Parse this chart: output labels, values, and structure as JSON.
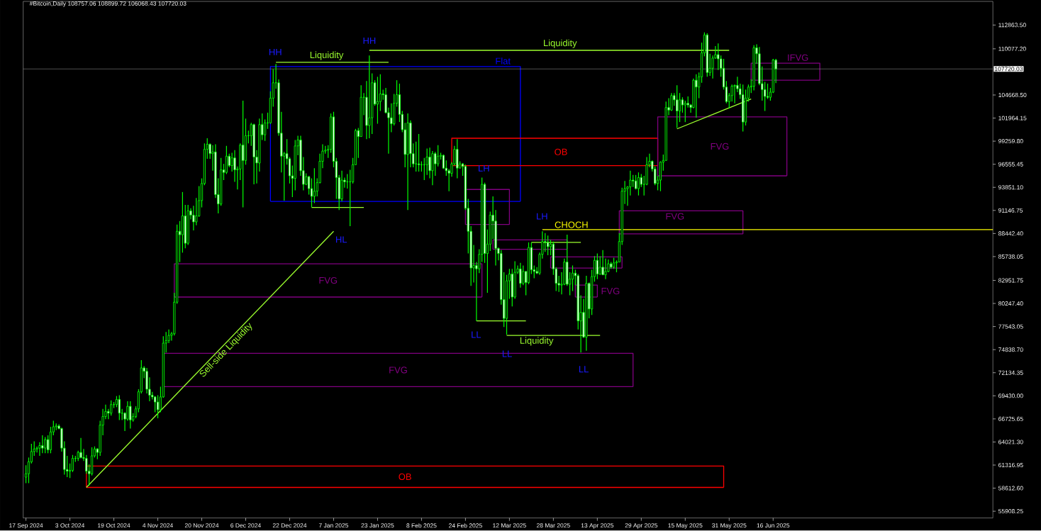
{
  "chart_data": {
    "type": "candlestick",
    "title": "#Bitcoin,Daily 108757.06 108899.72 106068.43 107720.03",
    "color": "#00ff00",
    "x": [
      "2024-09-17",
      "2024-09-18",
      "2024-09-19",
      "2024-09-20",
      "2024-09-21",
      "2024-09-22",
      "2024-09-23",
      "2024-09-24",
      "2024-09-25",
      "2024-09-26",
      "2024-09-27",
      "2024-09-28",
      "2024-09-29",
      "2024-09-30",
      "2024-10-01",
      "2024-10-02",
      "2024-10-03",
      "2024-10-04",
      "2024-10-05",
      "2024-10-06",
      "2024-10-07",
      "2024-10-08",
      "2024-10-09",
      "2024-10-10",
      "2024-10-11",
      "2024-10-12",
      "2024-10-13",
      "2024-10-14",
      "2024-10-15",
      "2024-10-16",
      "2024-10-17",
      "2024-10-18",
      "2024-10-19",
      "2024-10-20",
      "2024-10-21",
      "2024-10-22",
      "2024-10-23",
      "2024-10-24",
      "2024-10-25",
      "2024-10-26",
      "2024-10-27",
      "2024-10-28",
      "2024-10-29",
      "2024-10-30",
      "2024-10-31",
      "2024-11-01",
      "2024-11-02",
      "2024-11-03",
      "2024-11-04",
      "2024-11-05",
      "2024-11-06",
      "2024-11-07",
      "2024-11-08",
      "2024-11-09",
      "2024-11-10",
      "2024-11-11",
      "2024-11-12",
      "2024-11-13",
      "2024-11-14",
      "2024-11-15",
      "2024-11-16",
      "2024-11-17",
      "2024-11-18",
      "2024-11-19",
      "2024-11-20",
      "2024-11-21",
      "2024-11-22",
      "2024-11-23",
      "2024-11-24",
      "2024-11-25",
      "2024-11-26",
      "2024-11-27",
      "2024-11-28",
      "2024-11-29",
      "2024-11-30",
      "2024-12-01",
      "2024-12-02",
      "2024-12-03",
      "2024-12-04",
      "2024-12-05",
      "2024-12-06",
      "2024-12-07",
      "2024-12-08",
      "2024-12-09",
      "2024-12-10",
      "2024-12-11",
      "2024-12-12",
      "2024-12-13",
      "2024-12-14",
      "2024-12-15",
      "2024-12-16",
      "2024-12-17",
      "2024-12-18",
      "2024-12-19",
      "2024-12-20",
      "2024-12-21",
      "2024-12-22",
      "2024-12-23",
      "2024-12-24",
      "2024-12-25",
      "2024-12-26",
      "2024-12-27",
      "2024-12-28",
      "2024-12-29",
      "2024-12-30",
      "2024-12-31",
      "2025-01-01",
      "2025-01-02",
      "2025-01-03",
      "2025-01-04",
      "2025-01-05",
      "2025-01-06",
      "2025-01-07",
      "2025-01-08",
      "2025-01-09",
      "2025-01-10",
      "2025-01-11",
      "2025-01-12",
      "2025-01-13",
      "2025-01-14",
      "2025-01-15",
      "2025-01-16",
      "2025-01-17",
      "2025-01-18",
      "2025-01-19",
      "2025-01-20",
      "2025-01-21",
      "2025-01-22",
      "2025-01-23",
      "2025-01-24",
      "2025-01-25",
      "2025-01-26",
      "2025-01-27",
      "2025-01-28",
      "2025-01-29",
      "2025-01-30",
      "2025-01-31",
      "2025-02-01",
      "2025-02-02",
      "2025-02-03",
      "2025-02-04",
      "2025-02-05",
      "2025-02-06",
      "2025-02-07",
      "2025-02-08",
      "2025-02-09",
      "2025-02-10",
      "2025-02-11",
      "2025-02-12",
      "2025-02-13",
      "2025-02-14",
      "2025-02-15",
      "2025-02-16",
      "2025-02-17",
      "2025-02-18",
      "2025-02-19",
      "2025-02-20",
      "2025-02-21",
      "2025-02-22",
      "2025-02-23",
      "2025-02-24",
      "2025-02-25",
      "2025-02-26",
      "2025-02-27",
      "2025-02-28",
      "2025-03-01",
      "2025-03-02",
      "2025-03-03",
      "2025-03-04",
      "2025-03-05",
      "2025-03-06",
      "2025-03-07",
      "2025-03-08",
      "2025-03-09",
      "2025-03-10",
      "2025-03-11",
      "2025-03-12",
      "2025-03-13",
      "2025-03-14",
      "2025-03-15",
      "2025-03-16",
      "2025-03-17",
      "2025-03-18",
      "2025-03-19",
      "2025-03-20",
      "2025-03-21",
      "2025-03-22",
      "2025-03-23",
      "2025-03-24",
      "2025-03-25",
      "2025-03-26",
      "2025-03-27",
      "2025-03-28",
      "2025-03-29",
      "2025-03-30",
      "2025-03-31",
      "2025-04-01",
      "2025-04-02",
      "2025-04-03",
      "2025-04-04",
      "2025-04-05",
      "2025-04-06",
      "2025-04-07",
      "2025-04-08",
      "2025-04-09",
      "2025-04-10",
      "2025-04-11",
      "2025-04-12",
      "2025-04-13",
      "2025-04-14",
      "2025-04-15",
      "2025-04-16",
      "2025-04-17",
      "2025-04-18",
      "2025-04-19",
      "2025-04-20",
      "2025-04-21",
      "2025-04-22",
      "2025-04-23",
      "2025-04-24",
      "2025-04-25",
      "2025-04-26",
      "2025-04-27",
      "2025-04-28",
      "2025-04-29",
      "2025-04-30",
      "2025-05-01",
      "2025-05-02",
      "2025-05-03",
      "2025-05-04",
      "2025-05-05",
      "2025-05-06",
      "2025-05-07",
      "2025-05-08",
      "2025-05-09",
      "2025-05-10",
      "2025-05-11",
      "2025-05-12",
      "2025-05-13",
      "2025-05-14",
      "2025-05-15",
      "2025-05-16",
      "2025-05-17",
      "2025-05-18",
      "2025-05-19",
      "2025-05-20",
      "2025-05-21",
      "2025-05-22",
      "2025-05-23",
      "2025-05-24",
      "2025-05-25",
      "2025-05-26",
      "2025-05-27",
      "2025-05-28",
      "2025-05-29",
      "2025-05-30",
      "2025-05-31",
      "2025-06-01",
      "2025-06-02",
      "2025-06-03",
      "2025-06-04",
      "2025-06-05",
      "2025-06-06",
      "2025-06-07",
      "2025-06-08",
      "2025-06-09",
      "2025-06-10",
      "2025-06-11",
      "2025-06-12",
      "2025-06-13",
      "2025-06-14",
      "2025-06-15",
      "2025-06-16",
      "2025-06-17"
    ],
    "ohlc": [
      [
        59900,
        61300,
        59200,
        60300
      ],
      [
        60300,
        62200,
        59200,
        61700
      ],
      [
        61700,
        63800,
        61500,
        62900
      ],
      [
        62900,
        64100,
        62400,
        63200
      ],
      [
        63200,
        63500,
        62800,
        63300
      ],
      [
        63300,
        64000,
        62400,
        63600
      ],
      [
        63600,
        64800,
        62700,
        63300
      ],
      [
        63300,
        64600,
        62700,
        64300
      ],
      [
        64300,
        64800,
        62700,
        63100
      ],
      [
        63100,
        65800,
        62700,
        65200
      ],
      [
        65200,
        66500,
        64800,
        65800
      ],
      [
        65800,
        66200,
        65400,
        65900
      ],
      [
        65900,
        66100,
        65500,
        65600
      ],
      [
        65600,
        65700,
        62900,
        63300
      ],
      [
        63300,
        64100,
        60200,
        60800
      ],
      [
        60800,
        62400,
        59900,
        60600
      ],
      [
        60600,
        61500,
        59800,
        60700
      ],
      [
        60700,
        62500,
        60500,
        62100
      ],
      [
        62100,
        62400,
        61700,
        62100
      ],
      [
        62100,
        63000,
        61800,
        62800
      ],
      [
        62800,
        64500,
        62100,
        62200
      ],
      [
        62200,
        63200,
        61800,
        62100
      ],
      [
        62100,
        62500,
        60300,
        60600
      ],
      [
        60600,
        61400,
        58900,
        60300
      ],
      [
        60300,
        63400,
        60100,
        62400
      ],
      [
        62400,
        63500,
        62200,
        63200
      ],
      [
        63200,
        63300,
        62000,
        62800
      ],
      [
        62800,
        66500,
        62400,
        66000
      ],
      [
        66000,
        67900,
        64800,
        67000
      ],
      [
        67000,
        68400,
        66700,
        67600
      ],
      [
        67600,
        67900,
        66700,
        67400
      ],
      [
        67400,
        68900,
        67100,
        68400
      ],
      [
        68400,
        68700,
        68000,
        68400
      ],
      [
        68400,
        69400,
        68100,
        69000
      ],
      [
        69000,
        69500,
        66600,
        67400
      ],
      [
        67400,
        67900,
        66600,
        67400
      ],
      [
        67400,
        67500,
        65300,
        66700
      ],
      [
        66700,
        68800,
        66500,
        68200
      ],
      [
        68200,
        68800,
        65600,
        66600
      ],
      [
        66600,
        67400,
        66400,
        67000
      ],
      [
        67000,
        68200,
        66800,
        67900
      ],
      [
        67900,
        70200,
        67500,
        69900
      ],
      [
        69900,
        73600,
        69700,
        72700
      ],
      [
        72700,
        72900,
        71500,
        72300
      ],
      [
        72300,
        72700,
        69700,
        70200
      ],
      [
        70200,
        71600,
        68800,
        69500
      ],
      [
        69500,
        69900,
        69000,
        69300
      ],
      [
        69300,
        69400,
        67500,
        68700
      ],
      [
        68700,
        69500,
        66800,
        67800
      ],
      [
        67800,
        70500,
        67500,
        69300
      ],
      [
        69300,
        76400,
        69200,
        75600
      ],
      [
        75600,
        76900,
        74500,
        75900
      ],
      [
        75900,
        77200,
        75600,
        76500
      ],
      [
        76500,
        76900,
        75900,
        76700
      ],
      [
        76700,
        81500,
        76500,
        80400
      ],
      [
        80400,
        89500,
        80200,
        88700
      ],
      [
        88700,
        89900,
        85100,
        88300
      ],
      [
        88300,
        93300,
        86200,
        90500
      ],
      [
        90500,
        91800,
        86700,
        87300
      ],
      [
        87300,
        91800,
        87100,
        91100
      ],
      [
        91100,
        91400,
        90100,
        90600
      ],
      [
        90600,
        91700,
        88800,
        89800
      ],
      [
        89800,
        92600,
        89400,
        90500
      ],
      [
        90500,
        94000,
        90400,
        92300
      ],
      [
        92300,
        94900,
        91500,
        94300
      ],
      [
        94300,
        99000,
        94100,
        98300
      ],
      [
        98300,
        99600,
        97200,
        98900
      ],
      [
        98900,
        99000,
        97200,
        97800
      ],
      [
        97800,
        98800,
        95800,
        98000
      ],
      [
        98000,
        98900,
        92600,
        93000
      ],
      [
        93000,
        94900,
        90800,
        91900
      ],
      [
        91900,
        97300,
        91700,
        95900
      ],
      [
        95900,
        96600,
        94700,
        95600
      ],
      [
        95600,
        98700,
        95400,
        97500
      ],
      [
        97500,
        97800,
        96200,
        96400
      ],
      [
        96400,
        97900,
        95700,
        97300
      ],
      [
        97300,
        98200,
        94500,
        95900
      ],
      [
        95900,
        96300,
        93600,
        96000
      ],
      [
        96000,
        99000,
        94700,
        98800
      ],
      [
        98800,
        104000,
        91500,
        97000
      ],
      [
        97000,
        101900,
        96500,
        99900
      ],
      [
        99900,
        100500,
        99000,
        99900
      ],
      [
        99900,
        101400,
        98700,
        101200
      ],
      [
        101200,
        101300,
        94200,
        97400
      ],
      [
        97400,
        98200,
        94300,
        96700
      ],
      [
        96700,
        101900,
        95700,
        101200
      ],
      [
        101200,
        102500,
        99400,
        100000
      ],
      [
        100000,
        101800,
        99300,
        101400
      ],
      [
        101400,
        102600,
        100700,
        101400
      ],
      [
        101400,
        105100,
        101300,
        104300
      ],
      [
        104300,
        107700,
        103300,
        106100
      ],
      [
        106100,
        108300,
        105400,
        106100
      ],
      [
        106100,
        106500,
        99900,
        100200
      ],
      [
        100200,
        102700,
        95600,
        97500
      ],
      [
        97500,
        98000,
        92300,
        97800
      ],
      [
        97800,
        99500,
        96500,
        97200
      ],
      [
        97200,
        97400,
        94300,
        95200
      ],
      [
        95200,
        96400,
        92700,
        94900
      ],
      [
        94900,
        99400,
        93500,
        98700
      ],
      [
        98700,
        99900,
        97600,
        99400
      ],
      [
        99400,
        99900,
        95200,
        95800
      ],
      [
        95800,
        97400,
        93500,
        94200
      ],
      [
        94200,
        95500,
        94100,
        95100
      ],
      [
        95100,
        95200,
        93000,
        93700
      ],
      [
        93700,
        94900,
        91500,
        92800
      ],
      [
        92800,
        96100,
        92000,
        93400
      ],
      [
        93400,
        94900,
        92800,
        94400
      ],
      [
        94400,
        97800,
        94300,
        96900
      ],
      [
        96900,
        98900,
        96100,
        98100
      ],
      [
        98100,
        98700,
        97800,
        98200
      ],
      [
        98200,
        98800,
        97300,
        98300
      ],
      [
        98300,
        102500,
        97900,
        102100
      ],
      [
        102100,
        102700,
        96200,
        96900
      ],
      [
        96900,
        97300,
        92500,
        95000
      ],
      [
        95000,
        95300,
        91200,
        92500
      ],
      [
        92500,
        95800,
        92200,
        94700
      ],
      [
        94700,
        95000,
        93800,
        94500
      ],
      [
        94500,
        95400,
        93700,
        94500
      ],
      [
        94500,
        95900,
        89300,
        94500
      ],
      [
        94500,
        97300,
        94300,
        96500
      ],
      [
        96500,
        100700,
        96500,
        100500
      ],
      [
        100500,
        100800,
        97300,
        99800
      ],
      [
        99800,
        105800,
        99800,
        104400
      ],
      [
        104400,
        104900,
        102300,
        104400
      ],
      [
        104400,
        106300,
        99500,
        101100
      ],
      [
        101100,
        109300,
        99600,
        102000
      ],
      [
        102000,
        107200,
        100100,
        106100
      ],
      [
        106100,
        106400,
        103400,
        103600
      ],
      [
        103600,
        106800,
        101300,
        103900
      ],
      [
        103900,
        107100,
        102800,
        104800
      ],
      [
        104800,
        105300,
        104100,
        104700
      ],
      [
        104700,
        105500,
        102500,
        102600
      ],
      [
        102600,
        103200,
        97800,
        102000
      ],
      [
        102000,
        103700,
        100300,
        101300
      ],
      [
        101300,
        104800,
        101100,
        103700
      ],
      [
        103700,
        106400,
        103300,
        104700
      ],
      [
        104700,
        106000,
        101500,
        102400
      ],
      [
        102400,
        102800,
        100300,
        100600
      ],
      [
        100600,
        101400,
        96200,
        97700
      ],
      [
        97700,
        102500,
        91200,
        101400
      ],
      [
        101400,
        101700,
        96200,
        97800
      ],
      [
        97800,
        99000,
        96200,
        96600
      ],
      [
        96600,
        99200,
        95700,
        96600
      ],
      [
        96600,
        100100,
        95700,
        96500
      ],
      [
        96500,
        96900,
        95700,
        96500
      ],
      [
        96500,
        97300,
        94700,
        96500
      ],
      [
        96500,
        98400,
        95300,
        97400
      ],
      [
        97400,
        98500,
        94900,
        95800
      ],
      [
        95800,
        98100,
        94100,
        97800
      ],
      [
        97800,
        98000,
        95200,
        96600
      ],
      [
        96600,
        98800,
        96300,
        97500
      ],
      [
        97500,
        97900,
        97100,
        97600
      ],
      [
        97600,
        97700,
        96000,
        96100
      ],
      [
        96100,
        97000,
        95200,
        95800
      ],
      [
        95800,
        96000,
        93400,
        95500
      ],
      [
        95500,
        96800,
        95100,
        96600
      ],
      [
        96600,
        98700,
        96400,
        98300
      ],
      [
        98300,
        99500,
        94900,
        96100
      ],
      [
        96100,
        96900,
        96100,
        96600
      ],
      [
        96600,
        96700,
        95200,
        96300
      ],
      [
        96300,
        96500,
        91200,
        91400
      ],
      [
        91400,
        92500,
        86100,
        88700
      ],
      [
        88700,
        89300,
        82300,
        84400
      ],
      [
        84400,
        87100,
        82700,
        84700
      ],
      [
        84700,
        85100,
        78200,
        84300
      ],
      [
        84300,
        86600,
        83800,
        86000
      ],
      [
        86000,
        95000,
        85100,
        94200
      ],
      [
        94200,
        94400,
        85000,
        86100
      ],
      [
        86100,
        88900,
        81500,
        87200
      ],
      [
        87200,
        91000,
        86400,
        90600
      ],
      [
        90600,
        92800,
        87800,
        89900
      ],
      [
        89900,
        91200,
        84700,
        86700
      ],
      [
        86700,
        86800,
        85300,
        86100
      ],
      [
        86100,
        86500,
        80100,
        80700
      ],
      [
        80700,
        83900,
        77500,
        78500
      ],
      [
        78500,
        83600,
        76600,
        82900
      ],
      [
        82900,
        84300,
        80800,
        83700
      ],
      [
        83700,
        84300,
        79900,
        81000
      ],
      [
        81000,
        85200,
        80800,
        83900
      ],
      [
        83900,
        84700,
        83700,
        84300
      ],
      [
        84300,
        85000,
        82100,
        82600
      ],
      [
        82600,
        84700,
        82400,
        84000
      ],
      [
        84000,
        84000,
        81200,
        82700
      ],
      [
        82700,
        87400,
        82500,
        86800
      ],
      [
        86800,
        87400,
        83700,
        84200
      ],
      [
        84200,
        84700,
        83200,
        84000
      ],
      [
        84000,
        84500,
        83700,
        83800
      ],
      [
        83800,
        86200,
        83600,
        86000
      ],
      [
        86000,
        88700,
        85500,
        87500
      ],
      [
        87500,
        88500,
        86300,
        87400
      ],
      [
        87400,
        88200,
        85900,
        86900
      ],
      [
        86900,
        87700,
        85900,
        87200
      ],
      [
        87200,
        87500,
        83600,
        84300
      ],
      [
        84300,
        84500,
        81700,
        82600
      ],
      [
        82600,
        83500,
        81600,
        82400
      ],
      [
        82400,
        83900,
        81300,
        82500
      ],
      [
        82500,
        85500,
        82400,
        85100
      ],
      [
        85100,
        88300,
        82300,
        82500
      ],
      [
        82500,
        83900,
        81200,
        83100
      ],
      [
        83100,
        84700,
        81700,
        83800
      ],
      [
        83800,
        84200,
        82400,
        83500
      ],
      [
        83500,
        83700,
        77200,
        78200
      ],
      [
        78200,
        81200,
        74500,
        79200
      ],
      [
        79200,
        80800,
        76200,
        76300
      ],
      [
        76300,
        83500,
        74700,
        82600
      ],
      [
        82600,
        82700,
        78500,
        79600
      ],
      [
        79600,
        84200,
        78900,
        83400
      ],
      [
        83400,
        85800,
        82800,
        85300
      ],
      [
        85300,
        86100,
        83100,
        83700
      ],
      [
        83700,
        85800,
        83600,
        84500
      ],
      [
        84500,
        86500,
        83600,
        83600
      ],
      [
        83600,
        85500,
        83100,
        84000
      ],
      [
        84000,
        85400,
        83900,
        84900
      ],
      [
        84900,
        85100,
        84300,
        84500
      ],
      [
        84500,
        85600,
        84300,
        85000
      ],
      [
        85000,
        85300,
        83900,
        85100
      ],
      [
        85100,
        88500,
        85100,
        87500
      ],
      [
        87500,
        93800,
        87100,
        93400
      ],
      [
        93400,
        94600,
        91900,
        93700
      ],
      [
        93700,
        94000,
        91700,
        93900
      ],
      [
        93900,
        95800,
        92900,
        94700
      ],
      [
        94700,
        95300,
        93900,
        94600
      ],
      [
        94600,
        95300,
        93600,
        93700
      ],
      [
        93700,
        95600,
        92900,
        95000
      ],
      [
        95000,
        95400,
        93900,
        94200
      ],
      [
        94200,
        95200,
        92900,
        94200
      ],
      [
        94200,
        97400,
        94100,
        96500
      ],
      [
        96500,
        97800,
        96200,
        96900
      ],
      [
        96900,
        97000,
        95700,
        96000
      ],
      [
        96000,
        96300,
        94100,
        94300
      ],
      [
        94300,
        95200,
        93500,
        94700
      ],
      [
        94700,
        96900,
        93400,
        96800
      ],
      [
        96800,
        97700,
        95800,
        97000
      ],
      [
        97000,
        103900,
        97000,
        103200
      ],
      [
        103200,
        104300,
        102300,
        102900
      ],
      [
        102900,
        104900,
        102800,
        104600
      ],
      [
        104600,
        104900,
        103400,
        104100
      ],
      [
        104100,
        105800,
        100800,
        102800
      ],
      [
        102800,
        104900,
        101500,
        104100
      ],
      [
        104100,
        104400,
        102600,
        103500
      ],
      [
        103500,
        104000,
        101500,
        103700
      ],
      [
        103700,
        104500,
        103200,
        103500
      ],
      [
        103500,
        103600,
        102600,
        103200
      ],
      [
        103200,
        106600,
        103100,
        106400
      ],
      [
        106400,
        107100,
        102000,
        105600
      ],
      [
        105600,
        107300,
        104300,
        106800
      ],
      [
        106800,
        110800,
        106100,
        109600
      ],
      [
        109600,
        112000,
        109200,
        111700
      ],
      [
        111700,
        111900,
        106800,
        107300
      ],
      [
        107300,
        109500,
        106900,
        107800
      ],
      [
        107800,
        109300,
        106600,
        109000
      ],
      [
        109000,
        110400,
        108900,
        109400
      ],
      [
        109400,
        110700,
        107600,
        108900
      ],
      [
        108900,
        109300,
        106800,
        107800
      ],
      [
        107800,
        108900,
        105300,
        105600
      ],
      [
        105600,
        106300,
        103700,
        103900
      ],
      [
        103900,
        104900,
        103100,
        104600
      ],
      [
        104600,
        105900,
        103900,
        105700
      ],
      [
        105700,
        105900,
        103700,
        105800
      ],
      [
        105800,
        106800,
        105000,
        105400
      ],
      [
        105400,
        106000,
        104200,
        104700
      ],
      [
        104700,
        105900,
        100400,
        101500
      ],
      [
        101500,
        105300,
        101100,
        104300
      ],
      [
        104300,
        105900,
        103900,
        105600
      ],
      [
        105600,
        106500,
        104900,
        105700
      ],
      [
        105700,
        110500,
        105200,
        110200
      ],
      [
        110200,
        110600,
        108300,
        109500
      ],
      [
        109500,
        110300,
        105800,
        106000
      ],
      [
        106000,
        108000,
        104000,
        105300
      ],
      [
        105300,
        106200,
        102800,
        104500
      ],
      [
        104500,
        106000,
        104200,
        104400
      ],
      [
        104400,
        105500,
        104000,
        105000
      ],
      [
        105000,
        108900,
        104900,
        108757.06
      ],
      [
        108757.06,
        108899.72,
        106068.43,
        107720.03
      ]
    ],
    "series": [
      {
        "type": "line",
        "name": "Flat",
        "color": "#0000ff",
        "x": [
          "2024-12-15",
          "2024-12-15",
          "2025-03-16",
          "2025-03-16"
        ],
        "values": [
          92200,
          108000,
          108000,
          92200
        ]
      },
      {
        "type": "line",
        "color": "#0000ff",
        "x": [
          "2024-12-15",
          "2025-03-16"
        ],
        "values": [
          92200,
          92200
        ]
      },
      {
        "type": "line",
        "name": "OB",
        "color": "#ff0000",
        "x": [
          "2025-02-19",
          "2025-02-19",
          "2025-05-05",
          "2025-05-05"
        ],
        "values": [
          96400,
          99600,
          99600,
          96400
        ]
      },
      {
        "type": "line",
        "color": "#ff0000",
        "x": [
          "2025-02-19",
          "2025-05-05"
        ],
        "values": [
          96400,
          96400
        ]
      },
      {
        "type": "line",
        "color": "#800080",
        "x": [
          "2025-02-24",
          "2025-02-24",
          "2025-03-12",
          "2025-03-12"
        ],
        "values": [
          89500,
          93600,
          93600,
          89500
        ]
      },
      {
        "type": "line",
        "color": "#800080",
        "x": [
          "2025-02-24",
          "2025-03-12"
        ],
        "values": [
          89500,
          89500
        ]
      },
      {
        "type": "line",
        "name": "FVG",
        "color": "#800080",
        "x": [
          "2024-11-10",
          "2024-11-10",
          "2025-03-02",
          "2025-03-02"
        ],
        "values": [
          81000,
          84900,
          84900,
          81000
        ]
      },
      {
        "type": "line",
        "color": "#800080",
        "x": [
          "2024-11-10",
          "2025-03-02"
        ],
        "values": [
          81000,
          81000
        ]
      },
      {
        "type": "line",
        "name": "FVG",
        "color": "#800080",
        "x": [
          "2024-11-06",
          "2024-11-06",
          "2025-04-26",
          "2025-04-26"
        ],
        "values": [
          70500,
          74400,
          74400,
          70500
        ]
      },
      {
        "type": "line",
        "color": "#800080",
        "x": [
          "2024-11-06",
          "2025-04-26"
        ],
        "values": [
          70500,
          70500
        ]
      },
      {
        "type": "line",
        "name": "OB",
        "color": "#ff0000",
        "x": [
          "2024-10-09",
          "2024-10-09",
          "2025-05-29",
          "2025-05-29"
        ],
        "values": [
          58700,
          61200,
          61200,
          58700
        ]
      },
      {
        "type": "line",
        "color": "#ff0000",
        "x": [
          "2024-10-09",
          "2025-05-29"
        ],
        "values": [
          58700,
          58700
        ]
      },
      {
        "type": "line",
        "name": "FVG",
        "color": "#800080",
        "x": [
          "2025-04-21",
          "2025-04-21",
          "2025-06-05",
          "2025-06-05"
        ],
        "values": [
          88400,
          91100,
          91100,
          88400
        ]
      },
      {
        "type": "line",
        "color": "#800080",
        "x": [
          "2025-04-21",
          "2025-06-05"
        ],
        "values": [
          88400,
          88400
        ]
      },
      {
        "type": "line",
        "name": "FVG",
        "color": "#800080",
        "x": [
          "2025-05-05",
          "2025-05-05",
          "2025-06-21",
          "2025-06-21"
        ],
        "values": [
          95200,
          102100,
          102100,
          95200
        ]
      },
      {
        "type": "line",
        "color": "#800080",
        "x": [
          "2025-05-05",
          "2025-06-21"
        ],
        "values": [
          95200,
          95200
        ]
      },
      {
        "type": "line",
        "name": "IFVG",
        "color": "#800080",
        "x": [
          "2025-06-08",
          "2025-06-08",
          "2025-07-03",
          "2025-07-03"
        ],
        "values": [
          106400,
          108400,
          108400,
          106400
        ]
      },
      {
        "type": "line",
        "color": "#800080",
        "x": [
          "2025-06-08",
          "2025-07-03"
        ],
        "values": [
          106400,
          106400
        ]
      },
      {
        "type": "line",
        "color": "#800080",
        "x": [
          "2025-03-06",
          "2025-03-06",
          "2025-04-02",
          "2025-04-02"
        ],
        "values": [
          86600,
          87700,
          87700,
          86600
        ]
      },
      {
        "type": "line",
        "color": "#800080",
        "x": [
          "2025-03-06",
          "2025-04-02"
        ],
        "values": [
          86600,
          86600
        ]
      },
      {
        "type": "line",
        "color": "#800080",
        "x": [
          "2025-03-27",
          "2025-03-27",
          "2025-04-22",
          "2025-04-22"
        ],
        "values": [
          84400,
          85700,
          85700,
          84400
        ]
      },
      {
        "type": "line",
        "color": "#800080",
        "x": [
          "2025-03-27",
          "2025-04-22"
        ],
        "values": [
          84400,
          84400
        ]
      },
      {
        "type": "line",
        "name": "FVG",
        "color": "#800080",
        "x": [
          "2025-04-05",
          "2025-04-05",
          "2025-04-13",
          "2025-04-13"
        ],
        "values": [
          81000,
          82400,
          82400,
          81000
        ]
      },
      {
        "type": "line",
        "color": "#800080",
        "x": [
          "2025-04-05",
          "2025-04-13"
        ],
        "values": [
          81000,
          81000
        ]
      },
      {
        "type": "line",
        "name": "Liquidity",
        "color": "#9cff2e",
        "x": [
          "2024-12-17",
          "2025-01-27"
        ],
        "values": [
          108500,
          108500
        ]
      },
      {
        "type": "line",
        "name": "Liquidity",
        "color": "#9cff2e",
        "x": [
          "2025-01-20",
          "2025-05-31"
        ],
        "values": [
          109900,
          109900
        ]
      },
      {
        "type": "line",
        "color": "#9cff2e",
        "x": [
          "2024-12-30",
          "2025-01-18"
        ],
        "values": [
          91500,
          91500
        ]
      },
      {
        "type": "line",
        "color": "#9cff2e",
        "x": [
          "2025-02-28",
          "2025-03-18"
        ],
        "values": [
          78200,
          78200
        ]
      },
      {
        "type": "line",
        "name": "Liquidity",
        "color": "#9cff2e",
        "x": [
          "2025-03-11",
          "2025-04-14"
        ],
        "values": [
          76500,
          76500
        ]
      },
      {
        "type": "line",
        "color": "#9cff2e",
        "x": [
          "2025-03-20",
          "2025-04-07"
        ],
        "values": [
          87400,
          87400
        ]
      },
      {
        "type": "line",
        "name": "Sell-side Liquidity",
        "color": "#9cff2e",
        "x": [
          "2024-10-09",
          "2025-01-07"
        ],
        "values": [
          58700,
          88700
        ]
      },
      {
        "type": "line",
        "name": "CHOCH",
        "color": "#ffff00",
        "x": [
          "2025-03-24",
          "2025-09-04"
        ],
        "values": [
          88900,
          88900
        ]
      },
      {
        "type": "line",
        "color": "#9cff2e",
        "x": [
          "2025-05-12",
          "2025-06-08"
        ],
        "values": [
          100700,
          104200
        ]
      }
    ],
    "annotations": [
      "HH",
      "HH",
      "HL",
      "LH",
      "LH",
      "LL",
      "LL",
      "LL"
    ],
    "ref_lines": [
      {
        "axis": "y",
        "value": 107720.03,
        "label": "107720.03",
        "color": "#a0a0a0"
      }
    ],
    "xlim": [
      "2024-09-16",
      "2025-09-04"
    ],
    "ylim": [
      55120,
      115630
    ],
    "xticks": [
      {
        "value": "2024-09-17",
        "label": "17 Sep 2024"
      },
      {
        "value": "2024-10-03",
        "label": "3 Oct 2024"
      },
      {
        "value": "2024-10-19",
        "label": "19 Oct 2024"
      },
      {
        "value": "2024-11-04",
        "label": "4 Nov 2024"
      },
      {
        "value": "2024-11-20",
        "label": "20 Nov 2024"
      },
      {
        "value": "2024-12-06",
        "label": "6 Dec 2024"
      },
      {
        "value": "2024-12-22",
        "label": "22 Dec 2024"
      },
      {
        "value": "2025-01-07",
        "label": "7 Jan 2025"
      },
      {
        "value": "2025-01-23",
        "label": "23 Jan 2025"
      },
      {
        "value": "2025-02-08",
        "label": "8 Feb 2025"
      },
      {
        "value": "2025-02-24",
        "label": "24 Feb 2025"
      },
      {
        "value": "2025-03-12",
        "label": "12 Mar 2025"
      },
      {
        "value": "2025-03-28",
        "label": "28 Mar 2025"
      },
      {
        "value": "2025-04-13",
        "label": "13 Apr 2025"
      },
      {
        "value": "2025-04-29",
        "label": "29 Apr 2025"
      },
      {
        "value": "2025-05-15",
        "label": "15 May 2025"
      },
      {
        "value": "2025-05-31",
        "label": "31 May 2025"
      },
      {
        "value": "2025-06-16",
        "label": "16 Jun 2025"
      }
    ],
    "yticks": [
      {
        "value": 112863.5,
        "label": "112863.50"
      },
      {
        "value": 110077.2,
        "label": "110077.20"
      },
      {
        "value": 104668.5,
        "label": "104668.50"
      },
      {
        "value": 101964.15,
        "label": "101964.15"
      },
      {
        "value": 99259.8,
        "label": "99259.80"
      },
      {
        "value": 96555.45,
        "label": "96555.45"
      },
      {
        "value": 93851.1,
        "label": "93851.10"
      },
      {
        "value": 91146.75,
        "label": "91146.75"
      },
      {
        "value": 88442.4,
        "label": "88442.40"
      },
      {
        "value": 85738.05,
        "label": "85738.05"
      },
      {
        "value": 82951.75,
        "label": "82951.75"
      },
      {
        "value": 80247.4,
        "label": "80247.40"
      },
      {
        "value": 77543.05,
        "label": "77543.05"
      },
      {
        "value": 74838.7,
        "label": "74838.70"
      },
      {
        "value": 72134.35,
        "label": "72134.35"
      },
      {
        "value": 69430.0,
        "label": "69430.00"
      },
      {
        "value": 66725.65,
        "label": "66725.65"
      },
      {
        "value": 64021.3,
        "label": "64021.30"
      },
      {
        "value": 61316.95,
        "label": "61316.95"
      },
      {
        "value": 58612.6,
        "label": "58612.60"
      },
      {
        "value": 55908.25,
        "label": "55908.25"
      }
    ]
  }
}
